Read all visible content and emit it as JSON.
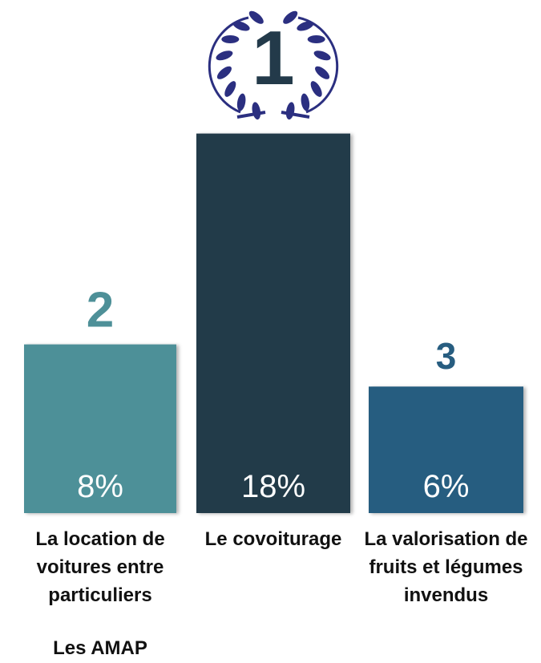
{
  "chart_data": {
    "type": "bar",
    "categories": [
      "La location de voitures entre particuliers",
      "Le covoiturage",
      "La valorisation de fruits et légumes invendus"
    ],
    "values": [
      8,
      18,
      6
    ],
    "value_labels": [
      "8%",
      "18%",
      "6%"
    ],
    "ranks": [
      "2",
      "1",
      "3"
    ],
    "colors": [
      "#4e9098",
      "#233a4a",
      "#275d80"
    ],
    "annotation": "Les AMAP"
  }
}
